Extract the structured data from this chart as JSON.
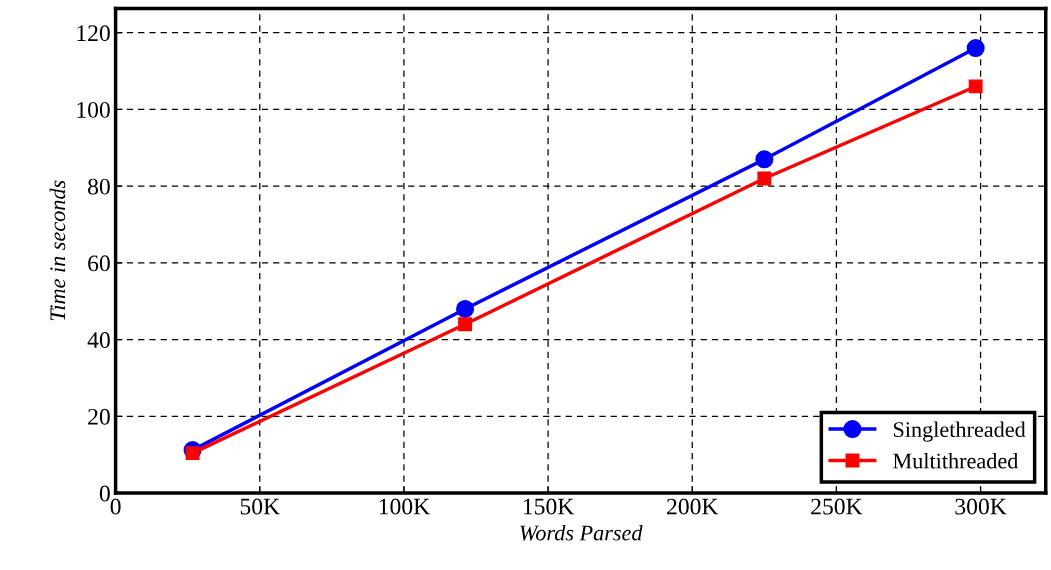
{
  "chart_data": {
    "type": "line",
    "xlabel": "Words Parsed",
    "ylabel": "Time in seconds",
    "series": [
      {
        "name": "Singlethreaded",
        "color": "#0000ff",
        "marker": "circle",
        "x": [
          26700,
          121200,
          225000,
          298300
        ],
        "values": [
          11.2,
          48,
          87,
          116
        ]
      },
      {
        "name": "Multithreaded",
        "color": "#ff0000",
        "marker": "square",
        "x": [
          26700,
          121200,
          225000,
          298300
        ],
        "values": [
          10.4,
          44,
          82,
          106
        ]
      }
    ],
    "xlim": [
      0,
      322600
    ],
    "ylim": [
      0,
      126.3
    ],
    "xticks": [
      0,
      {
        "value": 50000,
        "label": "50K"
      },
      {
        "value": 100000,
        "label": "100K"
      },
      {
        "value": 150000,
        "label": "150K"
      },
      {
        "value": 200000,
        "label": "200K"
      },
      {
        "value": 250000,
        "label": "250K"
      },
      {
        "value": 300000,
        "label": "300K"
      }
    ],
    "yticks": [
      0,
      20,
      40,
      60,
      80,
      100,
      120
    ],
    "grid": true,
    "legend": "bottom right",
    "line_style": "solid"
  }
}
